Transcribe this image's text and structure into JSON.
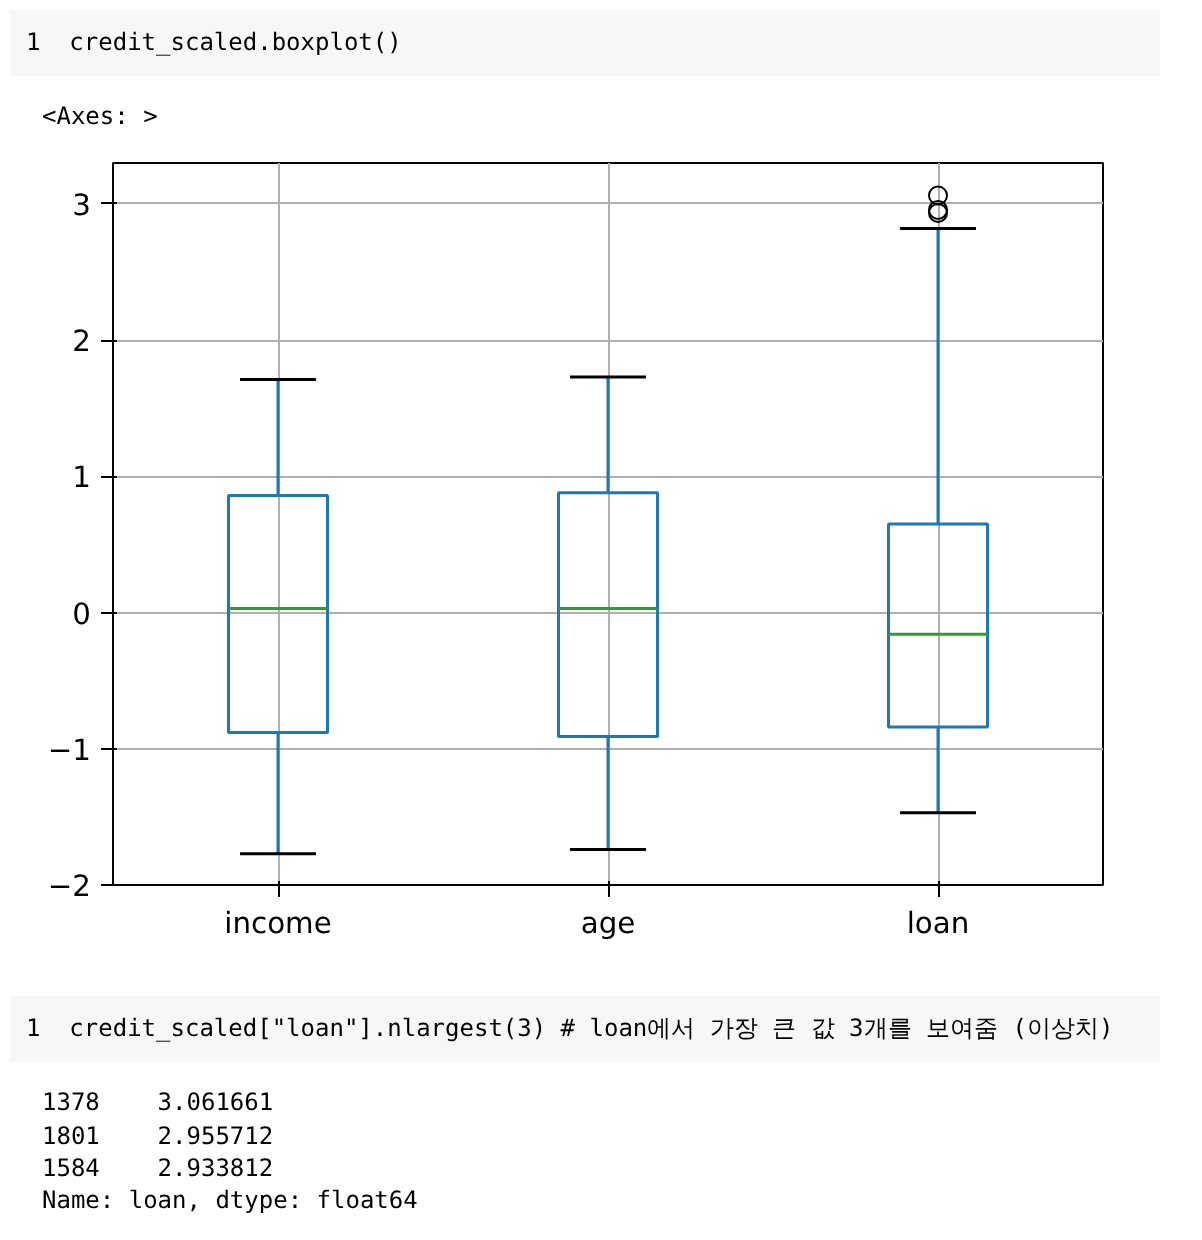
{
  "chart_data": {
    "type": "box",
    "categories": [
      "income",
      "age",
      "loan"
    ],
    "boxes": [
      {
        "low": -1.77,
        "q1": -0.88,
        "median": 0.03,
        "q3": 0.86,
        "high": 1.71
      },
      {
        "low": -1.74,
        "q1": -0.91,
        "median": 0.03,
        "q3": 0.88,
        "high": 1.73
      },
      {
        "low": -1.47,
        "q1": -0.84,
        "median": -0.16,
        "q3": 0.65,
        "high": 2.82,
        "outliers": [
          3.061661,
          2.955712,
          2.933812
        ]
      }
    ],
    "ylim": [
      -2,
      3.3
    ],
    "yticks": [
      -2,
      -1,
      0,
      1,
      2,
      3
    ],
    "grid": true,
    "annotations": [
      "1  credit_scaled.boxplot()",
      "<Axes: >",
      "1  credit_scaled[\"loan\"].nlargest(3) # loan에서 가장 큰 값 3개를 보여줌 (이상치)",
      "1378    3.061661",
      "1801    2.955712",
      "1584    2.933812",
      "Name: loan, dtype: float64"
    ]
  }
}
